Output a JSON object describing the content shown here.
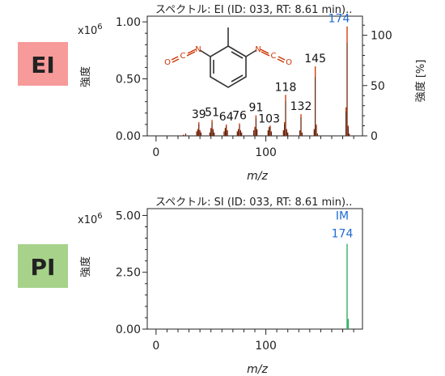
{
  "colors": {
    "ei_badge": "#f79a9a",
    "pi_badge": "#a6d28a",
    "ei_peak": "#cc3300",
    "pi_peak": "#22aa55",
    "highlight": "#1f6bd6",
    "mol_bond": "#333333",
    "mol_hetero": "#cc3300"
  },
  "chart_data": [
    {
      "type": "bar",
      "panel": "EI",
      "badge": "EI",
      "title": "スペクトル: EI (ID: 033, RT: 8.61 min)..",
      "xlabel": "m/z",
      "ylabel": "強度",
      "ylabel_right": "強度 [%]",
      "y_scale_label": "x10",
      "y_scale_exp": "6",
      "xlim": [
        -8,
        188
      ],
      "ylim": [
        0,
        1.05
      ],
      "y2lim": [
        0,
        119
      ],
      "x_ticks": [
        0,
        100
      ],
      "y_ticks": [
        0.0,
        0.5,
        1.0
      ],
      "y_tick_labels": [
        "0.00",
        "0.50",
        "1.00"
      ],
      "y2_ticks": [
        0,
        50,
        100
      ],
      "y2_tick_labels": [
        "0",
        "50",
        "100"
      ],
      "peaks": [
        {
          "x": 39,
          "y": 0.12,
          "label": "39"
        },
        {
          "x": 51,
          "y": 0.14,
          "label": "51"
        },
        {
          "x": 64,
          "y": 0.1,
          "label": "64"
        },
        {
          "x": 76,
          "y": 0.11,
          "label": "76"
        },
        {
          "x": 91,
          "y": 0.18,
          "label": "91"
        },
        {
          "x": 103,
          "y": 0.08,
          "label": "103"
        },
        {
          "x": 118,
          "y": 0.36,
          "label": "118"
        },
        {
          "x": 132,
          "y": 0.19,
          "label": "132"
        },
        {
          "x": 145,
          "y": 0.61,
          "label": "145"
        },
        {
          "x": 174,
          "y": 0.96,
          "label": "174",
          "highlight": true
        },
        {
          "x": 25,
          "y": 0.01
        },
        {
          "x": 27,
          "y": 0.02
        },
        {
          "x": 37,
          "y": 0.04
        },
        {
          "x": 38,
          "y": 0.06
        },
        {
          "x": 40,
          "y": 0.05
        },
        {
          "x": 41,
          "y": 0.03
        },
        {
          "x": 49,
          "y": 0.03
        },
        {
          "x": 50,
          "y": 0.07
        },
        {
          "x": 52,
          "y": 0.06
        },
        {
          "x": 53,
          "y": 0.03
        },
        {
          "x": 62,
          "y": 0.04
        },
        {
          "x": 63,
          "y": 0.07
        },
        {
          "x": 65,
          "y": 0.05
        },
        {
          "x": 74,
          "y": 0.04
        },
        {
          "x": 75,
          "y": 0.06
        },
        {
          "x": 77,
          "y": 0.05
        },
        {
          "x": 78,
          "y": 0.03
        },
        {
          "x": 89,
          "y": 0.05
        },
        {
          "x": 90,
          "y": 0.08
        },
        {
          "x": 92,
          "y": 0.06
        },
        {
          "x": 102,
          "y": 0.05
        },
        {
          "x": 104,
          "y": 0.09
        },
        {
          "x": 105,
          "y": 0.04
        },
        {
          "x": 116,
          "y": 0.05
        },
        {
          "x": 117,
          "y": 0.12
        },
        {
          "x": 119,
          "y": 0.06
        },
        {
          "x": 120,
          "y": 0.03
        },
        {
          "x": 131,
          "y": 0.05
        },
        {
          "x": 133,
          "y": 0.03
        },
        {
          "x": 144,
          "y": 0.06
        },
        {
          "x": 146,
          "y": 0.1
        },
        {
          "x": 147,
          "y": 0.02
        },
        {
          "x": 173,
          "y": 0.25
        },
        {
          "x": 175,
          "y": 0.09
        },
        {
          "x": 176,
          "y": 0.02
        }
      ]
    },
    {
      "type": "bar",
      "panel": "PI",
      "badge": "PI",
      "title": "スペクトル: SI (ID: 033, RT: 8.61 min)..",
      "xlabel": "m/z",
      "ylabel": "強度",
      "y_scale_label": "x10",
      "y_scale_exp": "6",
      "xlim": [
        -8,
        188
      ],
      "ylim": [
        0,
        5.3
      ],
      "x_ticks": [
        0,
        100
      ],
      "y_ticks": [
        0.0,
        2.5,
        5.0
      ],
      "y_tick_labels": [
        "0.00",
        "2.50",
        "5.00"
      ],
      "peaks": [
        {
          "x": 174,
          "y": 3.75,
          "label": "IM\n174",
          "label_lines": [
            "IM",
            "174"
          ],
          "highlight": true
        },
        {
          "x": 175,
          "y": 0.45
        }
      ]
    }
  ]
}
